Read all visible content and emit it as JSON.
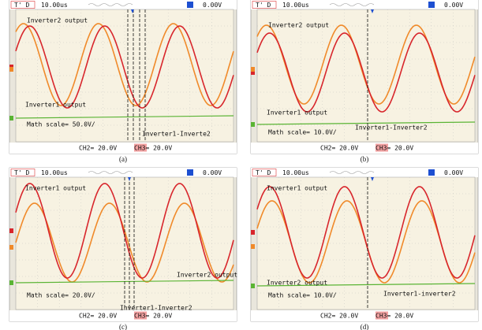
{
  "panels": [
    {
      "caption": "(a)",
      "status": {
        "trigger": "T' D",
        "timebase": "10.00us",
        "level": "0.00V"
      },
      "labels": {
        "first": "Inverter2 output",
        "second": "Inverter1 output",
        "math_scale": "Math scale= 50.0V/",
        "difference": "Inverter1-Inverte2"
      },
      "channels": [
        "CH2= 20.0V",
        "CH3= 20.0V"
      ]
    },
    {
      "caption": "(b)",
      "status": {
        "trigger": "T' D",
        "timebase": "10.00us",
        "level": "0.00V"
      },
      "labels": {
        "first": "Inverter2 output",
        "second": "Inverter1 output",
        "math_scale": "Math scale= 10.0V/",
        "difference": "Inverter1-Inverter2"
      },
      "channels": [
        "CH2= 20.0V",
        "CH3= 20.0V"
      ]
    },
    {
      "caption": "(c)",
      "status": {
        "trigger": "T' D",
        "timebase": "10.00us",
        "level": "0.00V"
      },
      "labels": {
        "first": "Inverter1 output",
        "second": "Inverter2 output",
        "math_scale": "Math scale= 20.0V/",
        "difference": "Inverter1-Inverter2"
      },
      "channels": [
        "CH2= 20.0V",
        "CH3= 20.0V"
      ]
    },
    {
      "caption": "(d)",
      "status": {
        "trigger": "T' D",
        "timebase": "10.00us",
        "level": "0.00V"
      },
      "labels": {
        "first": "Inverter1 output",
        "second": "Inverter2 output",
        "math_scale": "Math scale= 10.0V/",
        "difference": "Inverter1-inverter2"
      },
      "channels": [
        "CH2= 20.0V",
        "CH3= 20.0V"
      ]
    }
  ]
}
